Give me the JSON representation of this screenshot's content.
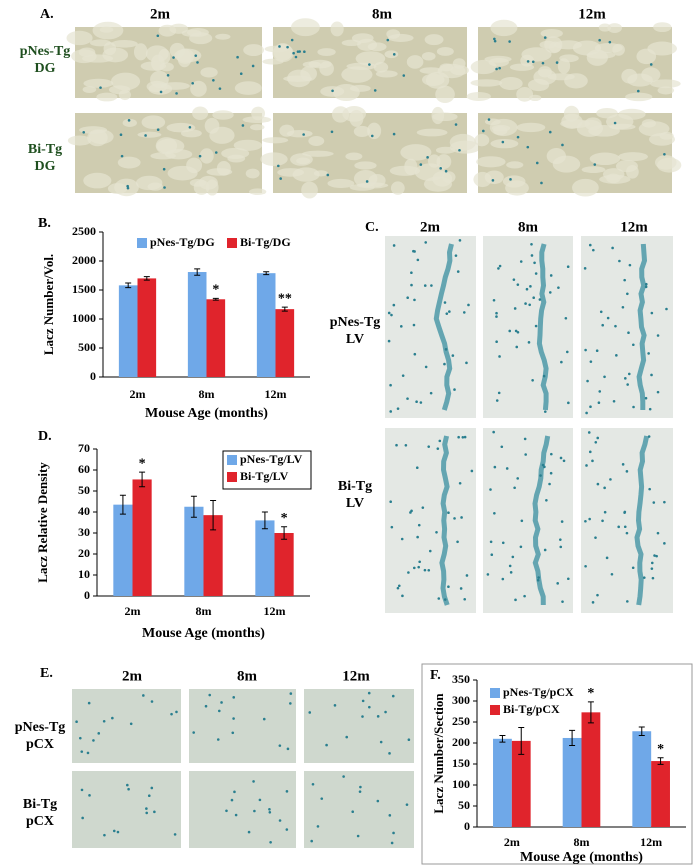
{
  "panel_A": {
    "label": "A.",
    "columns": [
      "2m",
      "8m",
      "12m"
    ],
    "rows": [
      [
        "pNes-Tg",
        "DG"
      ],
      [
        "Bi-Tg",
        "DG"
      ]
    ]
  },
  "panel_C": {
    "label": "C.",
    "columns": [
      "2m",
      "8m",
      "12m"
    ],
    "rows": [
      [
        "pNes-Tg",
        "LV"
      ],
      [
        "Bi-Tg",
        "LV"
      ]
    ]
  },
  "panel_E": {
    "label": "E.",
    "columns": [
      "2m",
      "8m",
      "12m"
    ],
    "rows": [
      [
        "pNes-Tg",
        "pCX"
      ],
      [
        "Bi-Tg",
        "pCX"
      ]
    ]
  },
  "chart_labels": [
    "B.",
    "D.",
    "F."
  ],
  "chart_data": [
    {
      "type": "bar",
      "x_label": "Mouse Age (months)",
      "y_label": "Lacz Number/Vol.",
      "categories": [
        "2m",
        "8m",
        "12m"
      ],
      "series": [
        {
          "name": "pNes-Tg/DG",
          "color": "#6fa8e8",
          "values": [
            1580,
            1810,
            1790
          ],
          "errors": [
            40,
            55,
            25
          ],
          "annotations": [
            null,
            null,
            null
          ]
        },
        {
          "name": "Bi-Tg/DG",
          "color": "#e0242c",
          "values": [
            1700,
            1340,
            1170
          ],
          "errors": [
            30,
            15,
            35
          ],
          "annotations": [
            null,
            "*",
            "**"
          ]
        }
      ],
      "ylim": [
        0,
        2500
      ],
      "yticks": [
        0,
        500,
        1000,
        1500,
        2000,
        2500
      ],
      "grid": false,
      "legend": "top"
    },
    {
      "type": "bar",
      "x_label": "Mouse Age (months)",
      "y_label": "Lacz Relative Density",
      "categories": [
        "2m",
        "8m",
        "12m"
      ],
      "series": [
        {
          "name": "pNes-Tg/LV",
          "color": "#6fa8e8",
          "values": [
            43.5,
            42.5,
            36
          ],
          "errors": [
            4.5,
            5,
            4
          ],
          "annotations": [
            null,
            null,
            null
          ]
        },
        {
          "name": "Bi-Tg/LV",
          "color": "#e0242c",
          "values": [
            55.5,
            38.5,
            30
          ],
          "errors": [
            3.5,
            7,
            3
          ],
          "annotations": [
            "*",
            null,
            "*"
          ]
        }
      ],
      "ylim": [
        0,
        70
      ],
      "yticks": [
        0,
        10,
        20,
        30,
        40,
        50,
        60,
        70
      ],
      "grid": false,
      "legend": "top-right"
    },
    {
      "type": "bar",
      "x_label": "Mouse Age (months)",
      "y_label": "Lacz Number/Section",
      "categories": [
        "2m",
        "8m",
        "12m"
      ],
      "series": [
        {
          "name": "pNes-Tg/pCX",
          "color": "#6fa8e8",
          "values": [
            210,
            212,
            228
          ],
          "errors": [
            8,
            18,
            10
          ],
          "annotations": [
            null,
            null,
            null
          ]
        },
        {
          "name": "Bi-Tg/pCX",
          "color": "#e0242c",
          "values": [
            205,
            273,
            157
          ],
          "errors": [
            32,
            25,
            8
          ],
          "annotations": [
            null,
            "*",
            "*"
          ]
        }
      ],
      "ylim": [
        0,
        350
      ],
      "yticks": [
        0,
        50,
        100,
        150,
        200,
        250,
        300,
        350
      ],
      "grid": false,
      "legend": "top-left"
    }
  ]
}
